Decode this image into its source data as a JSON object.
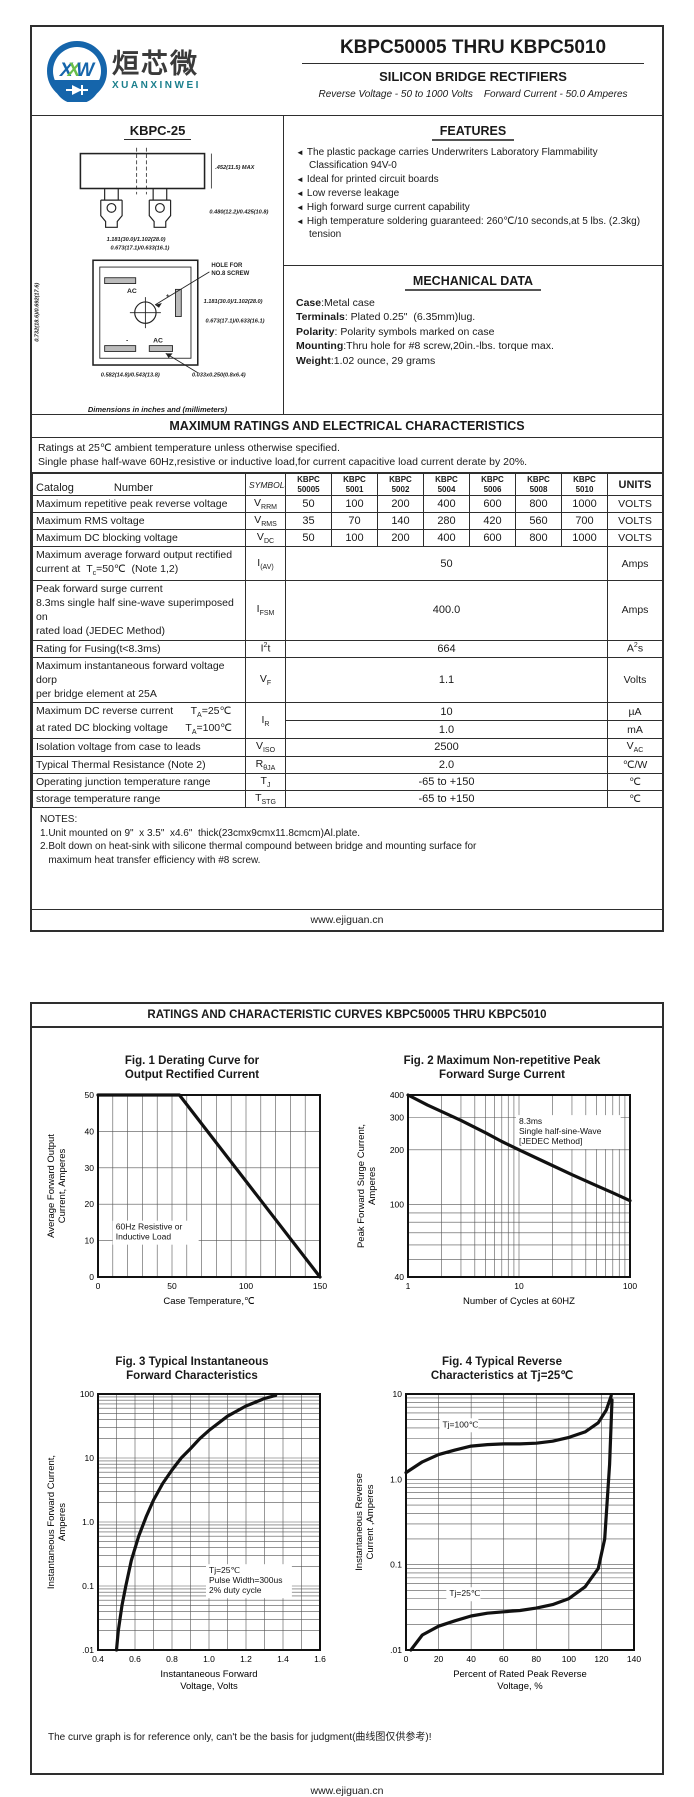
{
  "page1": {
    "logo": {
      "monogram": {
        "m1": "X",
        "m2": "X",
        "m3": "W"
      },
      "chars": "烜芯微",
      "latin": "XUANXINWEI",
      "circle_color": "#1565ab",
      "band_color": "#0d3e7e",
      "accent_green": "#6abf4b",
      "latin_color": "#1b7f8c"
    },
    "title": "KBPC50005 THRU KBPC5010",
    "subtitle": "SILICON BRIDGE RECTIFIERS",
    "tagline": "Reverse Voltage - 50 to 1000 Volts    Forward Current - 50.0 Amperes",
    "package": {
      "name": "KBPC-25",
      "note": "Dimensions in inches and (millimeters)",
      "dim_height": ".452(11.5) MAX",
      "dim_pin": "0.480(12.2)/0.425(10.8)",
      "dim_width_top": "1.181(30.0)/1.102(28.0)",
      "dim_hole_top": "0.673(17.1)/0.633(16.1)",
      "dim_side": "0.732(18.6)/0.692(17.6)",
      "dim_width_right": "1.181(30.0)/1.102(28.0)",
      "dim_hole_right": "0.673(17.1)/0.633(16.1)",
      "dim_bottom": "0.582(14.8)/0.543(13.8)",
      "dim_slot": "0.033x0.250(0.8x6.4)",
      "hole_label1": "HOLE FOR",
      "hole_label2": "NO.8 SCREW",
      "terminals": {
        "ac1": "AC",
        "plus": "+",
        "minus": "-",
        "ac2": "AC"
      }
    },
    "features": {
      "heading": "FEATURES",
      "items": [
        "The plastic package carries Underwriters Laboratory Flammability Classification 94V-0",
        "Ideal for printed circuit boards",
        "Low reverse leakage",
        "High forward surge current capability",
        "High temperature soldering guaranteed: 260℃/10 seconds,at 5 lbs. (2.3kg) tension"
      ]
    },
    "mechanical": {
      "heading": "MECHANICAL DATA",
      "rows": [
        {
          "label": "Case",
          "text": ":Metal case"
        },
        {
          "label": "Terminals",
          "text": ": Plated 0.25\"  (6.35mm)lug."
        },
        {
          "label": "Polarity",
          "text": ": Polarity symbols marked on case"
        },
        {
          "label": "Mounting",
          "text": ":Thru hole for #8 screw,20in.-lbs. torque max."
        },
        {
          "label": "Weight",
          "text": ":1.02 ounce, 29 grams"
        }
      ]
    },
    "ratings": {
      "heading": "MAXIMUM RATINGS AND ELECTRICAL CHARACTERISTICS",
      "note1": "Ratings at 25℃ ambient temperature unless otherwise specified.",
      "note2": "Single phase half-wave 60Hz,resistive or inductive load,for current capacitive load current derate by 20%.",
      "col_catalog": "Catalog",
      "col_number": "Number",
      "col_symbols": "SYMBOLS",
      "devices": [
        [
          "KBPC",
          "50005"
        ],
        [
          "KBPC",
          "5001"
        ],
        [
          "KBPC",
          "5002"
        ],
        [
          "KBPC",
          "5004"
        ],
        [
          "KBPC",
          "5006"
        ],
        [
          "KBPC",
          "5008"
        ],
        [
          "KBPC",
          "5010"
        ]
      ],
      "col_units": "UNITS",
      "rows": [
        {
          "param": [
            "Maximum repetitive peak reverse voltage"
          ],
          "symbol": "V_{RRM}",
          "values": [
            "50",
            "100",
            "200",
            "400",
            "600",
            "800",
            "1000"
          ],
          "units": "VOLTS"
        },
        {
          "param": [
            "Maximum RMS voltage"
          ],
          "symbol": "V_{RMS}",
          "values": [
            "35",
            "70",
            "140",
            "280",
            "420",
            "560",
            "700"
          ],
          "units": "VOLTS"
        },
        {
          "param": [
            "Maximum DC blocking voltage"
          ],
          "symbol": "V_{DC}",
          "values": [
            "50",
            "100",
            "200",
            "400",
            "600",
            "800",
            "1000"
          ],
          "units": "VOLTS"
        },
        {
          "param": [
            "Maximum average forward output rectified",
            "current at  T_{c}=50℃  (Note 1,2)"
          ],
          "symbol": "I_{(AV)}",
          "span": "50",
          "units": "Amps"
        },
        {
          "param": [
            "Peak forward surge current",
            "8.3ms single half sine-wave superimposed on",
            "rated load (JEDEC Method)"
          ],
          "symbol": "I_{FSM}",
          "span": "400.0",
          "units": "Amps"
        },
        {
          "param": [
            "Rating for Fusing(t<8.3ms)"
          ],
          "symbol": "I^{2}t",
          "span": "664",
          "units": "A^{2}s"
        },
        {
          "param": [
            "Maximum instantaneous forward voltage dorp",
            "per bridge element at 25A"
          ],
          "symbol": "V_{F}",
          "span": "1.1",
          "units": "Volts"
        },
        {
          "param": [
            "Maximum DC reverse current      T_{A}=25℃",
            "at rated DC blocking voltage      T_{A}=100℃"
          ],
          "symbol": "I_{R}",
          "dual": [
            {
              "span": "10",
              "units": "µA"
            },
            {
              "span": "1.0",
              "units": "mA"
            }
          ]
        },
        {
          "param": [
            "Isolation voltage from case to leads"
          ],
          "symbol": "V_{ISO}",
          "span": "2500",
          "units": "V_{AC}"
        },
        {
          "param": [
            "Typical Thermal Resistance (Note 2)"
          ],
          "symbol": "R_{θJA}",
          "span": "2.0",
          "units": "℃/W"
        },
        {
          "param": [
            "Operating junction temperature range"
          ],
          "symbol": "T_{J}",
          "span": "-65 to +150",
          "units": "℃"
        },
        {
          "param": [
            "storage temperature range"
          ],
          "symbol": "T_{STG}",
          "span": "-65 to +150",
          "units": "℃"
        }
      ]
    },
    "notes": {
      "heading": "NOTES:",
      "lines": [
        "1.Unit mounted on 9\"  x 3.5\"  x4.6\"  thick(23cmx9cmx11.8cmcm)Al.plate.",
        "2.Bolt down on heat-sink with silicone thermal compound between bridge and mounting surface for",
        "   maximum heat transfer efficiency with #8 screw."
      ]
    },
    "footer": "www.ejiguan.cn"
  },
  "page2": {
    "heading": "RATINGS AND CHARACTERISTIC CURVES KBPC50005 THRU KBPC5010",
    "note": "The curve graph is for reference only, can't be the basis for judgment(曲线图仅供参考)!",
    "footer": "www.ejiguan.cn"
  },
  "chart_data": [
    {
      "type": "line",
      "title": "Fig. 1 Derating Curve for\nOutput Rectified Current",
      "xlabel": "Case Temperature,℃",
      "ylabel": "Average Forward Output\nCurrent, Amperes",
      "xscale": "linear",
      "yscale": "linear",
      "xlim": [
        0,
        150
      ],
      "ylim": [
        0,
        50
      ],
      "xgrid_step": 10,
      "ygrid_step": 10,
      "xticks": [
        {
          "v": 0,
          "l": "0"
        },
        {
          "v": 50,
          "l": "50"
        },
        {
          "v": 100,
          "l": "100"
        },
        {
          "v": 150,
          "l": "150"
        }
      ],
      "yticks": [
        {
          "v": 0,
          "l": "0"
        },
        {
          "v": 10,
          "l": "10"
        },
        {
          "v": 20,
          "l": "20"
        },
        {
          "v": 30,
          "l": "30"
        },
        {
          "v": 40,
          "l": "40"
        },
        {
          "v": 50,
          "l": "50"
        }
      ],
      "annotations": [
        {
          "fx": 0.08,
          "fy": 0.74,
          "lines": [
            "60Hz Resistive or",
            "Inductive Load"
          ]
        }
      ],
      "series": [
        {
          "name": "derating-curve",
          "x": [
            0,
            55,
            150
          ],
          "y": [
            50,
            50,
            0
          ]
        }
      ]
    },
    {
      "type": "line",
      "title": "Fig. 2 Maximum Non-repetitive Peak\nForward Surge Current",
      "xlabel": "Number of Cycles at 60HZ",
      "ylabel": "Peak Forward Surge Current,\nAmperes",
      "xscale": "log",
      "yscale": "log",
      "xlim": [
        1,
        100
      ],
      "ylim": [
        40,
        400
      ],
      "xticks": [
        {
          "v": 1,
          "l": "1"
        },
        {
          "v": 10,
          "l": "10"
        },
        {
          "v": 100,
          "l": "100"
        }
      ],
      "yticks": [
        {
          "v": 40,
          "l": "40"
        },
        {
          "v": 100,
          "l": "100"
        },
        {
          "v": 200,
          "l": "200"
        },
        {
          "v": 300,
          "l": "300"
        },
        {
          "v": 400,
          "l": "400"
        }
      ],
      "annotations": [
        {
          "fx": 0.5,
          "fy": 0.16,
          "lines": [
            "8.3ms",
            "Single half-sine-Wave",
            "[JEDEC Method]"
          ]
        }
      ],
      "series": [
        {
          "name": "surge-current",
          "x": [
            1,
            1.5,
            2,
            3,
            5,
            7,
            10,
            15,
            20,
            30,
            50,
            70,
            100
          ],
          "y": [
            400,
            352,
            325,
            290,
            248,
            222,
            200,
            178,
            164,
            146,
            127,
            116,
            105
          ]
        }
      ]
    },
    {
      "type": "line",
      "title": "Fig. 3 Typical Instantaneous\nForward Characteristics",
      "xlabel": "Instantaneous Forward\nVoltage, Volts",
      "ylabel": "Instantaneous Forward Current,\nAmperes",
      "xscale": "linear",
      "yscale": "log",
      "xlim": [
        0.4,
        1.6
      ],
      "ylim": [
        0.01,
        100
      ],
      "xgrid_step": 0.1,
      "xticks": [
        {
          "v": 0.4,
          "l": "0.4"
        },
        {
          "v": 0.6,
          "l": "0.6"
        },
        {
          "v": 0.8,
          "l": "0.8"
        },
        {
          "v": 1.0,
          "l": "1.0"
        },
        {
          "v": 1.2,
          "l": "1.2"
        },
        {
          "v": 1.4,
          "l": "1.4"
        },
        {
          "v": 1.6,
          "l": "1.6"
        }
      ],
      "yticks": [
        {
          "v": 0.01,
          "l": ".01"
        },
        {
          "v": 0.1,
          "l": "0.1"
        },
        {
          "v": 1,
          "l": "1.0"
        },
        {
          "v": 10,
          "l": "10"
        },
        {
          "v": 100,
          "l": "100"
        }
      ],
      "annotations": [
        {
          "fx": 0.5,
          "fy": 0.7,
          "lines": [
            "Tj=25℃",
            "Pulse Width=300us",
            "2% duty cycle"
          ]
        }
      ],
      "series": [
        {
          "name": "forward-characteristic",
          "x": [
            0.5,
            0.51,
            0.53,
            0.55,
            0.58,
            0.62,
            0.66,
            0.7,
            0.75,
            0.8,
            0.85,
            0.9,
            0.95,
            1.0,
            1.1,
            1.2,
            1.3,
            1.36
          ],
          "y": [
            0.01,
            0.02,
            0.05,
            0.1,
            0.25,
            0.6,
            1.2,
            2.2,
            4,
            6.5,
            10,
            14,
            20,
            27,
            45,
            65,
            85,
            95
          ]
        }
      ]
    },
    {
      "type": "line",
      "title": "Fig. 4 Typical Reverse\nCharacteristics at Tj=25℃",
      "xlabel": "Percent of Rated Peak Reverse\nVoltage, %",
      "ylabel": "Instantaneous Reverse\nCurrent ,Amperes",
      "xscale": "linear",
      "yscale": "log",
      "xlim": [
        0,
        140
      ],
      "ylim": [
        0.01,
        10
      ],
      "xgrid_step": 20,
      "xticks": [
        {
          "v": 0,
          "l": "0"
        },
        {
          "v": 20,
          "l": "20"
        },
        {
          "v": 40,
          "l": "40"
        },
        {
          "v": 60,
          "l": "60"
        },
        {
          "v": 80,
          "l": "80"
        },
        {
          "v": 100,
          "l": "100"
        },
        {
          "v": 120,
          "l": "120"
        },
        {
          "v": 140,
          "l": "140"
        }
      ],
      "yticks": [
        {
          "v": 0.01,
          "l": ".01"
        },
        {
          "v": 0.1,
          "l": "0.1"
        },
        {
          "v": 1,
          "l": "1.0"
        },
        {
          "v": 10,
          "l": "10"
        }
      ],
      "annotations": [
        {
          "fx": 0.16,
          "fy": 0.13,
          "lines": [
            "Tj=100℃"
          ]
        },
        {
          "fx": 0.19,
          "fy": 0.79,
          "lines": [
            "Tj=25℃"
          ]
        }
      ],
      "series": [
        {
          "name": "Tj=100C",
          "x": [
            0,
            10,
            20,
            30,
            40,
            50,
            60,
            70,
            80,
            90,
            100,
            110,
            118,
            123,
            126
          ],
          "y": [
            1.2,
            1.6,
            1.95,
            2.2,
            2.45,
            2.55,
            2.6,
            2.6,
            2.65,
            2.8,
            3.1,
            3.6,
            4.6,
            6.5,
            9.5
          ]
        },
        {
          "name": "Tj=25C",
          "x": [
            3,
            10,
            20,
            30,
            40,
            50,
            60,
            70,
            80,
            90,
            100,
            110,
            118,
            122,
            125,
            126.5
          ],
          "y": [
            0.01,
            0.015,
            0.019,
            0.022,
            0.025,
            0.027,
            0.028,
            0.029,
            0.031,
            0.034,
            0.04,
            0.055,
            0.09,
            0.2,
            1.5,
            8.5
          ]
        }
      ]
    }
  ]
}
